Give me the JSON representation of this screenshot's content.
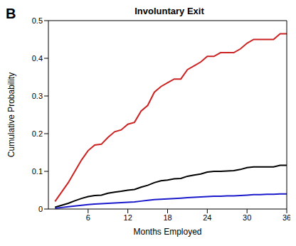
{
  "chart_data": {
    "type": "line",
    "title": "Involuntary Exit",
    "annotations": [
      "B"
    ],
    "x_label": "Months Employed",
    "y_label": "Cumulative Probability",
    "x": [
      1,
      2,
      3,
      4,
      5,
      6,
      7,
      8,
      9,
      10,
      11,
      12,
      13,
      14,
      15,
      16,
      17,
      18,
      19,
      20,
      21,
      22,
      23,
      24,
      25,
      26,
      27,
      28,
      29,
      30,
      31,
      32,
      33,
      34,
      35,
      36
    ],
    "series": [
      {
        "color": "#cc2222",
        "values": [
          0.02,
          0.045,
          0.07,
          0.1,
          0.13,
          0.155,
          0.17,
          0.172,
          0.19,
          0.205,
          0.21,
          0.225,
          0.23,
          0.26,
          0.275,
          0.31,
          0.325,
          0.335,
          0.345,
          0.345,
          0.37,
          0.38,
          0.39,
          0.405,
          0.405,
          0.415,
          0.415,
          0.415,
          0.425,
          0.44,
          0.45,
          0.45,
          0.45,
          0.45,
          0.465,
          0.465
        ]
      },
      {
        "color": "#000000",
        "values": [
          0.005,
          0.01,
          0.015,
          0.022,
          0.028,
          0.033,
          0.036,
          0.037,
          0.042,
          0.045,
          0.047,
          0.05,
          0.052,
          0.058,
          0.063,
          0.07,
          0.075,
          0.077,
          0.08,
          0.081,
          0.087,
          0.09,
          0.093,
          0.098,
          0.1,
          0.1,
          0.101,
          0.102,
          0.105,
          0.11,
          0.112,
          0.112,
          0.112,
          0.112,
          0.116,
          0.116
        ]
      },
      {
        "color": "#1a1acc",
        "values": [
          0.002,
          0.004,
          0.006,
          0.008,
          0.01,
          0.012,
          0.013,
          0.014,
          0.015,
          0.016,
          0.017,
          0.018,
          0.019,
          0.021,
          0.023,
          0.025,
          0.026,
          0.027,
          0.028,
          0.029,
          0.03,
          0.031,
          0.032,
          0.033,
          0.034,
          0.034,
          0.035,
          0.035,
          0.036,
          0.037,
          0.038,
          0.038,
          0.039,
          0.039,
          0.04,
          0.04
        ]
      }
    ],
    "xlim": [
      0,
      36
    ],
    "xticks": [
      6,
      12,
      18,
      24,
      30,
      36
    ],
    "ylim": [
      0,
      0.5
    ],
    "yticks": [
      0,
      0.1,
      0.2,
      0.3,
      0.4,
      0.5
    ],
    "grid": false
  }
}
